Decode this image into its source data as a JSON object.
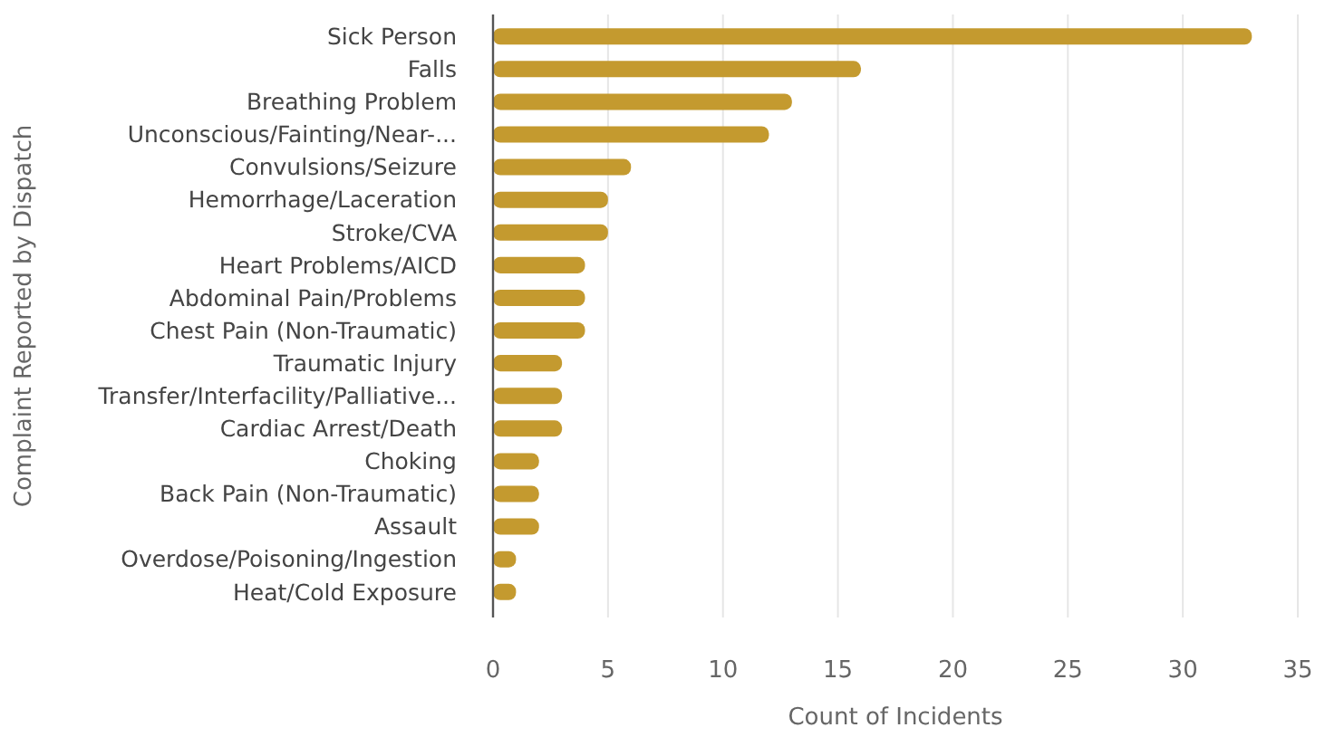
{
  "chart_data": {
    "type": "bar",
    "orientation": "horizontal",
    "xlabel": "Count of Incidents",
    "ylabel": "Complaint Reported by Dispatch",
    "categories": [
      "Sick Person",
      "Falls",
      "Breathing Problem",
      "Unconscious/Fainting/Near-...",
      "Convulsions/Seizure",
      "Hemorrhage/Laceration",
      "Stroke/CVA",
      "Heart Problems/AICD",
      "Abdominal Pain/Problems",
      "Chest Pain (Non-Traumatic)",
      "Traumatic Injury",
      "Transfer/Interfacility/Palliative...",
      "Cardiac Arrest/Death",
      "Choking",
      "Back Pain (Non-Traumatic)",
      "Assault",
      "Overdose/Poisoning/Ingestion",
      "Heat/Cold Exposure"
    ],
    "values": [
      33,
      16,
      13,
      12,
      6,
      5,
      5,
      4,
      4,
      4,
      3,
      3,
      3,
      2,
      2,
      2,
      1,
      1
    ],
    "color": "#c49a2f",
    "xlim": [
      0,
      35
    ],
    "xticks": [
      0,
      5,
      10,
      15,
      20,
      25,
      30,
      35
    ],
    "grid": "x"
  }
}
